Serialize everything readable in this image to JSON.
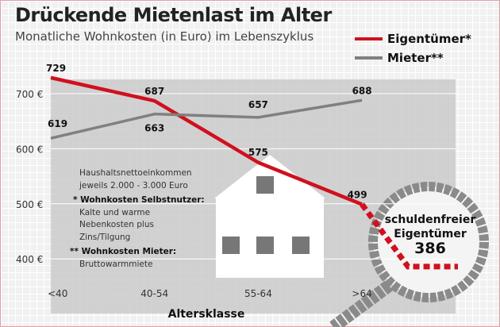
{
  "chart_data": {
    "type": "line",
    "title": "Drückende Mietenlast im Alter",
    "subtitle": "Monatliche Wohnkosten (in Euro) im Lebenszyklus",
    "xlabel": "Altersklasse",
    "categories": [
      "<40",
      "40-54",
      "55-64",
      ">64"
    ],
    "yticks": [
      400,
      500,
      600,
      700
    ],
    "ytick_labels": [
      "400 €",
      "500 €",
      "600 €",
      "700 €"
    ],
    "ylim": [
      350,
      760
    ],
    "series": [
      {
        "name": "Eigentümer*",
        "color": "#d0101e",
        "values": [
          729,
          687,
          575,
          499
        ]
      },
      {
        "name": "Mieter**",
        "color": "#808080",
        "values": [
          619,
          663,
          657,
          688
        ]
      }
    ],
    "annotation": {
      "label_line1": "schuldenfreier",
      "label_line2": "Eigentümer",
      "value": 386
    },
    "legend_position": "top-right"
  },
  "notes": {
    "line1": "Haushaltsnettoeinkommen",
    "line2": "jeweils 2.000 - 3.000 Euro",
    "owner_heading": "* Wohnkosten Selbstnutzer:",
    "owner_1": "Kalte und warme",
    "owner_2": "Nebenkosten plus",
    "owner_3": "Zins/Tilgung",
    "renter_heading": "** Wohnkosten Mieter:",
    "renter_1": "Bruttowarmmiete"
  }
}
